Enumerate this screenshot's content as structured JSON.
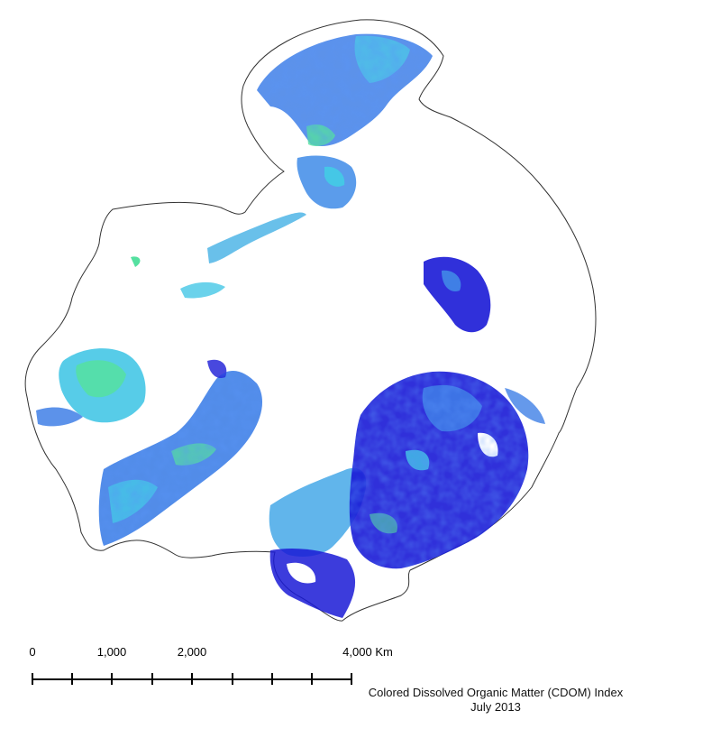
{
  "map": {
    "colors": {
      "outline": "#333333",
      "high_index": "#1a1ad6",
      "mid_index": "#3a6fe8",
      "low_index": "#45c7e6",
      "lowest_index": "#55e0a0",
      "background": "#ffffff"
    }
  },
  "scalebar": {
    "ticks": [
      "0",
      "1,000",
      "2,000",
      "4,000"
    ],
    "unit": "Km"
  },
  "title": {
    "line1": "Colored Dissolved Organic Matter (CDOM) Index",
    "line2": "July 2013"
  }
}
